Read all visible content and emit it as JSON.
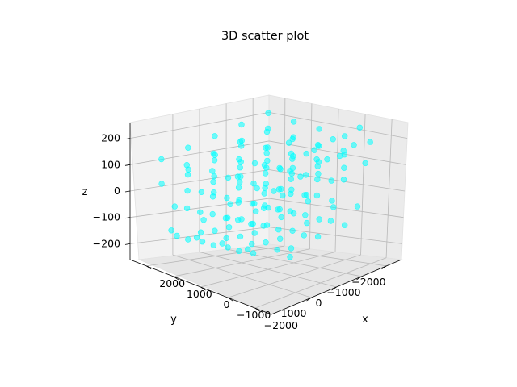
{
  "chart_data": {
    "type": "scatter3d",
    "title": "3D scatter plot",
    "xlabel": "x",
    "ylabel": "y",
    "zlabel": "z",
    "xlim": [
      -2600,
      2600
    ],
    "ylim": [
      -2600,
      2600
    ],
    "zlim": [
      -260,
      260
    ],
    "grid": true,
    "point_color": "#00ffff",
    "xticks": [
      {
        "value": -2000,
        "label": "−2000"
      },
      {
        "value": -1000,
        "label": "−1000"
      },
      {
        "value": 0,
        "label": "0"
      },
      {
        "value": 1000,
        "label": "1000"
      },
      {
        "value": 2000,
        "label": "2000"
      }
    ],
    "yticks": [
      {
        "value": -2000,
        "label": "−2000"
      },
      {
        "value": -1000,
        "label": "−1000"
      },
      {
        "value": 0,
        "label": "0"
      },
      {
        "value": 1000,
        "label": "1000"
      }
    ],
    "zticks": [
      {
        "value": 200,
        "label": "200"
      },
      {
        "value": 100,
        "label": "100"
      },
      {
        "value": 0,
        "label": "0"
      },
      {
        "value": -100,
        "label": "−100"
      },
      {
        "value": -200,
        "label": "−200"
      }
    ],
    "points": [
      [
        2000,
        -2000,
        210
      ],
      [
        1000,
        -2000,
        190
      ],
      [
        0,
        -2000,
        175
      ],
      [
        -1000,
        -2000,
        160
      ],
      [
        -2000,
        -2000,
        150
      ],
      [
        2000,
        -1000,
        180
      ],
      [
        1000,
        -1000,
        165
      ],
      [
        0,
        -1000,
        150
      ],
      [
        -1000,
        -1000,
        140
      ],
      [
        -2000,
        -1000,
        130
      ],
      [
        2000,
        0,
        150
      ],
      [
        1000,
        0,
        140
      ],
      [
        0,
        0,
        130
      ],
      [
        -1000,
        0,
        120
      ],
      [
        -2000,
        0,
        110
      ],
      [
        2000,
        1000,
        120
      ],
      [
        1000,
        1000,
        110
      ],
      [
        0,
        1000,
        100
      ],
      [
        -1000,
        1000,
        90
      ],
      [
        -2000,
        1000,
        80
      ],
      [
        2000,
        2000,
        90
      ],
      [
        1000,
        2000,
        80
      ],
      [
        0,
        2000,
        70
      ],
      [
        -1000,
        2000,
        60
      ],
      [
        1500,
        -1500,
        100
      ],
      [
        500,
        -1500,
        80
      ],
      [
        -500,
        -1500,
        70
      ],
      [
        -1500,
        -1500,
        60
      ],
      [
        1500,
        -500,
        60
      ],
      [
        500,
        -500,
        50
      ],
      [
        -500,
        -500,
        40
      ],
      [
        -1500,
        -500,
        30
      ],
      [
        1500,
        500,
        20
      ],
      [
        500,
        500,
        10
      ],
      [
        -500,
        500,
        0
      ],
      [
        -1500,
        500,
        -10
      ],
      [
        1500,
        1500,
        -20
      ],
      [
        500,
        1500,
        -30
      ],
      [
        -500,
        1500,
        -40
      ],
      [
        -1500,
        1500,
        -50
      ],
      [
        2000,
        -1500,
        40
      ],
      [
        1000,
        -1500,
        30
      ],
      [
        0,
        -1500,
        20
      ],
      [
        -1000,
        -1500,
        10
      ],
      [
        2000,
        -500,
        0
      ],
      [
        1000,
        -500,
        -10
      ],
      [
        0,
        -500,
        -20
      ],
      [
        -1000,
        -500,
        -30
      ],
      [
        2000,
        500,
        -40
      ],
      [
        1000,
        500,
        -50
      ],
      [
        0,
        500,
        -60
      ],
      [
        -1000,
        500,
        -70
      ],
      [
        2000,
        1500,
        -80
      ],
      [
        1000,
        1500,
        -90
      ],
      [
        0,
        1500,
        -100
      ],
      [
        -1000,
        1500,
        -110
      ],
      [
        1500,
        -2000,
        -50
      ],
      [
        500,
        -2000,
        -60
      ],
      [
        -500,
        -2000,
        -70
      ],
      [
        -1500,
        -2000,
        -80
      ],
      [
        1500,
        -1000,
        -90
      ],
      [
        500,
        -1000,
        -100
      ],
      [
        -500,
        -1000,
        -110
      ],
      [
        -1500,
        -1000,
        -120
      ],
      [
        1500,
        0,
        -130
      ],
      [
        500,
        0,
        -140
      ],
      [
        -500,
        0,
        -150
      ],
      [
        -1500,
        0,
        -160
      ],
      [
        1500,
        1000,
        -170
      ],
      [
        500,
        1000,
        -180
      ],
      [
        -500,
        1000,
        -190
      ],
      [
        -1500,
        1000,
        -200
      ],
      [
        2000,
        -2000,
        -120
      ],
      [
        1000,
        -2000,
        -130
      ],
      [
        0,
        -2000,
        -140
      ],
      [
        -1000,
        -2000,
        -150
      ],
      [
        2000,
        -1000,
        -150
      ],
      [
        1000,
        -1000,
        -160
      ],
      [
        0,
        -1000,
        -170
      ],
      [
        -1000,
        -1000,
        -180
      ],
      [
        2000,
        0,
        -180
      ],
      [
        1000,
        0,
        -190
      ],
      [
        0,
        0,
        -200
      ],
      [
        -1000,
        0,
        -210
      ],
      [
        2000,
        1000,
        -200
      ],
      [
        1000,
        1000,
        -210
      ],
      [
        0,
        1000,
        -220
      ],
      [
        -2000,
        1000,
        -220
      ],
      [
        1800,
        -1800,
        160
      ],
      [
        800,
        -1800,
        140
      ],
      [
        -200,
        -1800,
        120
      ],
      [
        -1200,
        -1800,
        100
      ],
      [
        1800,
        -800,
        110
      ],
      [
        800,
        -800,
        95
      ],
      [
        -200,
        -800,
        85
      ],
      [
        -1200,
        -800,
        70
      ],
      [
        1800,
        200,
        70
      ],
      [
        800,
        200,
        55
      ],
      [
        -200,
        200,
        45
      ],
      [
        -1200,
        200,
        35
      ],
      [
        1800,
        1200,
        30
      ],
      [
        800,
        1200,
        15
      ],
      [
        -200,
        1200,
        5
      ],
      [
        -1200,
        1200,
        -5
      ],
      [
        -1800,
        -1800,
        200
      ],
      [
        -1800,
        -800,
        170
      ],
      [
        -1800,
        200,
        130
      ],
      [
        -1800,
        1200,
        90
      ],
      [
        1200,
        -1200,
        60
      ],
      [
        200,
        -1200,
        45
      ],
      [
        -800,
        -1200,
        35
      ],
      [
        -1800,
        -1200,
        25
      ],
      [
        1200,
        -200,
        15
      ],
      [
        200,
        -200,
        0
      ],
      [
        -800,
        -200,
        -10
      ],
      [
        -1800,
        -200,
        -20
      ],
      [
        1200,
        800,
        -30
      ],
      [
        200,
        800,
        -45
      ],
      [
        -800,
        800,
        -55
      ],
      [
        -1800,
        800,
        -65
      ],
      [
        1200,
        1800,
        -75
      ],
      [
        200,
        1800,
        -85
      ],
      [
        -800,
        1800,
        -95
      ],
      [
        -1800,
        1800,
        -105
      ],
      [
        1600,
        -1200,
        -40
      ],
      [
        600,
        -1200,
        -55
      ],
      [
        -400,
        -1200,
        -65
      ],
      [
        -1400,
        -1200,
        -75
      ],
      [
        1600,
        -200,
        -85
      ],
      [
        600,
        -200,
        -100
      ],
      [
        -400,
        -200,
        -110
      ],
      [
        -1400,
        -200,
        -120
      ],
      [
        1600,
        800,
        -130
      ],
      [
        600,
        800,
        -145
      ],
      [
        -400,
        800,
        -155
      ],
      [
        -1400,
        800,
        -165
      ],
      [
        1600,
        1800,
        -175
      ],
      [
        600,
        1800,
        -185
      ],
      [
        -400,
        1800,
        -195
      ],
      [
        -1400,
        1800,
        -205
      ],
      [
        2200,
        -1200,
        120
      ],
      [
        2200,
        -200,
        80
      ],
      [
        2200,
        800,
        40
      ],
      [
        2200,
        1800,
        0
      ],
      [
        -2200,
        -1200,
        150
      ],
      [
        -2200,
        -200,
        110
      ],
      [
        -2200,
        800,
        60
      ],
      [
        -2200,
        1800,
        20
      ],
      [
        1400,
        -2200,
        110
      ],
      [
        400,
        -2200,
        95
      ],
      [
        -600,
        -2200,
        85
      ],
      [
        -1600,
        -2200,
        70
      ],
      [
        1400,
        2200,
        -150
      ],
      [
        400,
        2200,
        -165
      ],
      [
        -600,
        2200,
        -175
      ],
      [
        -1600,
        2200,
        -185
      ]
    ]
  }
}
